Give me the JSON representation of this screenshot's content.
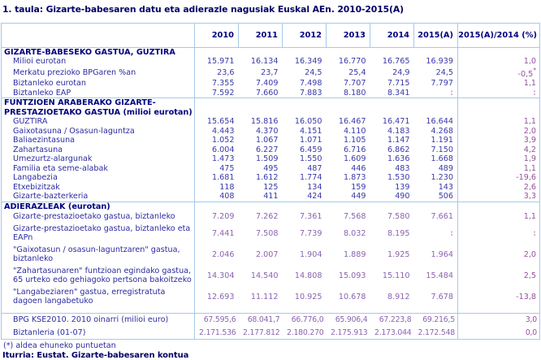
{
  "title": "1. taula: Gizarte-babesaren datu eta adierazle nagusiak Euskal AEn. 2010-2015(A)",
  "colors": {
    "border": "#a6c9e8",
    "title_text": "#000066",
    "navy": "#000080",
    "label_text": "#2b2ba0",
    "numbers_blue": "#3939a8",
    "numbers_purple": "#8a63b0",
    "change_col": "#96509e",
    "not_available": "#d49bd4"
  },
  "table": {
    "year_columns": [
      "2010",
      "2011",
      "2012",
      "2013",
      "2014",
      "2015(A)"
    ],
    "change_column": "2015(A)/2014 (%)",
    "sections": [
      {
        "header": "GIZARTE-BABESEKO GASTUA, GUZTIRA",
        "tone": "blue",
        "rows": [
          {
            "label": "Milioi eurotan",
            "values": [
              "15.971",
              "16.134",
              "16.349",
              "16.770",
              "16.765",
              "16.939"
            ],
            "change": "1,0"
          },
          {
            "label": "Merkatu prezioko BPGaren %an",
            "values": [
              "23,6",
              "23,7",
              "24,5",
              "25,4",
              "24,9",
              "24,5"
            ],
            "change": "-0,5*"
          },
          {
            "label": "Biztanleko eurotan",
            "values": [
              "7.355",
              "7.409",
              "7.498",
              "7.707",
              "7.715",
              "7.797"
            ],
            "change": "1,1"
          },
          {
            "label": "Biztanleko EAP",
            "values": [
              "7.592",
              "7.660",
              "7.883",
              "8.180",
              "8.341",
              ":"
            ],
            "change": ":"
          }
        ]
      },
      {
        "header": "FUNTZIOEN ARABERAKO GIZARTE-PRESTAZIOETAKO GASTUA (milioi eurotan)",
        "tone": "blue",
        "rows": [
          {
            "label": "GUZTIRA",
            "values": [
              "15.654",
              "15.816",
              "16.050",
              "16.467",
              "16.471",
              "16.644"
            ],
            "change": "1,1"
          },
          {
            "label": "Gaixotasuna / Osasun-laguntza",
            "values": [
              "4.443",
              "4.370",
              "4.151",
              "4.110",
              "4.183",
              "4.268"
            ],
            "change": "2,0"
          },
          {
            "label": "Baliaezintasuna",
            "values": [
              "1.052",
              "1.067",
              "1.071",
              "1.105",
              "1.147",
              "1.191"
            ],
            "change": "3,9"
          },
          {
            "label": "Zahartasuna",
            "values": [
              "6.004",
              "6.227",
              "6.459",
              "6.716",
              "6.862",
              "7.150"
            ],
            "change": "4,2"
          },
          {
            "label": "Umezurtz-alargunak",
            "values": [
              "1.473",
              "1.509",
              "1.550",
              "1.609",
              "1.636",
              "1.668"
            ],
            "change": "1,9"
          },
          {
            "label": "Familia eta seme-alabak",
            "values": [
              "475",
              "495",
              "487",
              "446",
              "483",
              "489"
            ],
            "change": "1,1"
          },
          {
            "label": "Langabezia",
            "values": [
              "1.681",
              "1.612",
              "1.774",
              "1.873",
              "1.530",
              "1.230"
            ],
            "change": "-19,6"
          },
          {
            "label": "Etxebizitzak",
            "values": [
              "118",
              "125",
              "134",
              "159",
              "139",
              "143"
            ],
            "change": "2,6"
          },
          {
            "label": "Gizarte-bazterkeria",
            "values": [
              "408",
              "411",
              "424",
              "449",
              "490",
              "506"
            ],
            "change": "3,3"
          }
        ]
      },
      {
        "header": "ADIERAZLEAK (eurotan)",
        "tone": "purple",
        "tall_rows": true,
        "rows": [
          {
            "label": "Gizarte-prestazioetako gastua, biztanleko",
            "values": [
              "7.209",
              "7.262",
              "7.361",
              "7.568",
              "7.580",
              "7.661"
            ],
            "change": "1,1"
          },
          {
            "label": "Gizarte-prestazioetako gastua, biztanleko eta EAPn",
            "values": [
              "7.441",
              "7.508",
              "7.739",
              "8.032",
              "8.195",
              ":"
            ],
            "change": ":"
          },
          {
            "label": "\"Gaixotasun / osasun-laguntzaren\" gastua, biztanleko",
            "values": [
              "2.046",
              "2.007",
              "1.904",
              "1.889",
              "1.925",
              "1.964"
            ],
            "change": "2,0"
          },
          {
            "label": "\"Zahartasunaren\" funtzioan egindako gastua, 65 urteko edo gehiagoko pertsona bakoitzeko",
            "values": [
              "14.304",
              "14.540",
              "14.808",
              "15.093",
              "15.110",
              "15.484"
            ],
            "change": "2,5"
          },
          {
            "label": "\"Langabeziaren\" gastua, erregistratuta dagoen langabetuko",
            "values": [
              "12.693",
              "11.112",
              "10.925",
              "10.678",
              "8.912",
              "7.678"
            ],
            "change": "-13,8"
          }
        ]
      }
    ],
    "footer_rows": {
      "tone": "purple",
      "rows": [
        {
          "label": "BPG KSE2010. 2010 oinarri (milioi euro)",
          "values": [
            "67.595,6",
            "68.041,7",
            "66.776,0",
            "65.906,4",
            "67.223,8",
            "69.216,5"
          ],
          "change": "3,0"
        },
        {
          "label": "Biztanleria (01-07)",
          "values": [
            "2.171.536",
            "2.177.812",
            "2.180.270",
            "2.175.913",
            "2.173.044",
            "2.172.548"
          ],
          "change": "0,0"
        }
      ]
    }
  },
  "footnote": "(*) aldea ehuneko puntuetan",
  "source": "Iturria: Eustat. Gizarte-babesaren kontua"
}
